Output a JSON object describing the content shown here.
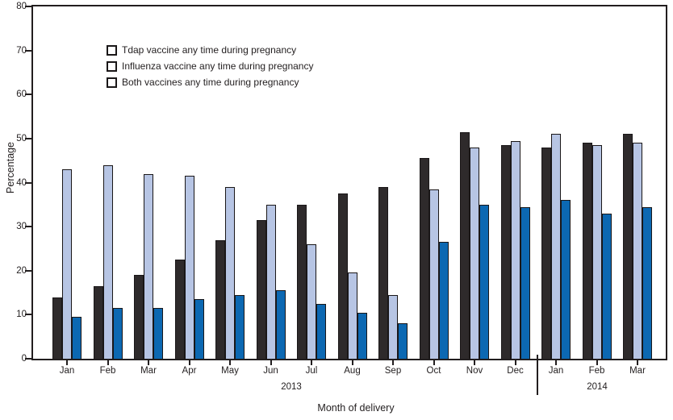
{
  "chart_data": {
    "type": "bar",
    "title": "",
    "ylabel": "Percentage",
    "xlabel": "Month of delivery",
    "ylim": [
      0,
      80
    ],
    "ytick_step": 10,
    "yticks": [
      0,
      10,
      20,
      30,
      40,
      50,
      60,
      70,
      80
    ],
    "grid": false,
    "legend_position": "top-left-inside",
    "categories": [
      "Jan",
      "Feb",
      "Mar",
      "Apr",
      "May",
      "Jun",
      "Jul",
      "Aug",
      "Sep",
      "Oct",
      "Nov",
      "Dec",
      "Jan",
      "Feb",
      "Mar"
    ],
    "year_groups": [
      {
        "label": "2013",
        "from": 0,
        "to": 11
      },
      {
        "label": "2014",
        "from": 12,
        "to": 14
      }
    ],
    "series": [
      {
        "name": "Tdap vaccine any time during pregnancy",
        "color": "#2e2a2b",
        "values": [
          14,
          16.5,
          19,
          22.5,
          27,
          31.5,
          35,
          37.5,
          39,
          45.5,
          51.5,
          48.5,
          48,
          49,
          51
        ]
      },
      {
        "name": "Influenza vaccine any time during pregnancy",
        "color": "#b7c5e4",
        "values": [
          43,
          44,
          42,
          41.5,
          39,
          35,
          26,
          19.5,
          14.5,
          38.5,
          48,
          49.5,
          51,
          48.5,
          49
        ]
      },
      {
        "name": "Both vaccines any time during pregnancy",
        "color": "#0c68b2",
        "values": [
          9.5,
          11.5,
          11.5,
          13.5,
          14.5,
          15.5,
          12.5,
          10.5,
          8,
          26.5,
          35,
          34.5,
          36,
          33,
          34.5
        ]
      }
    ],
    "colors": {
      "axis": "#221e1f",
      "text": "#221e1f",
      "bar_border": "#1a1718"
    }
  }
}
